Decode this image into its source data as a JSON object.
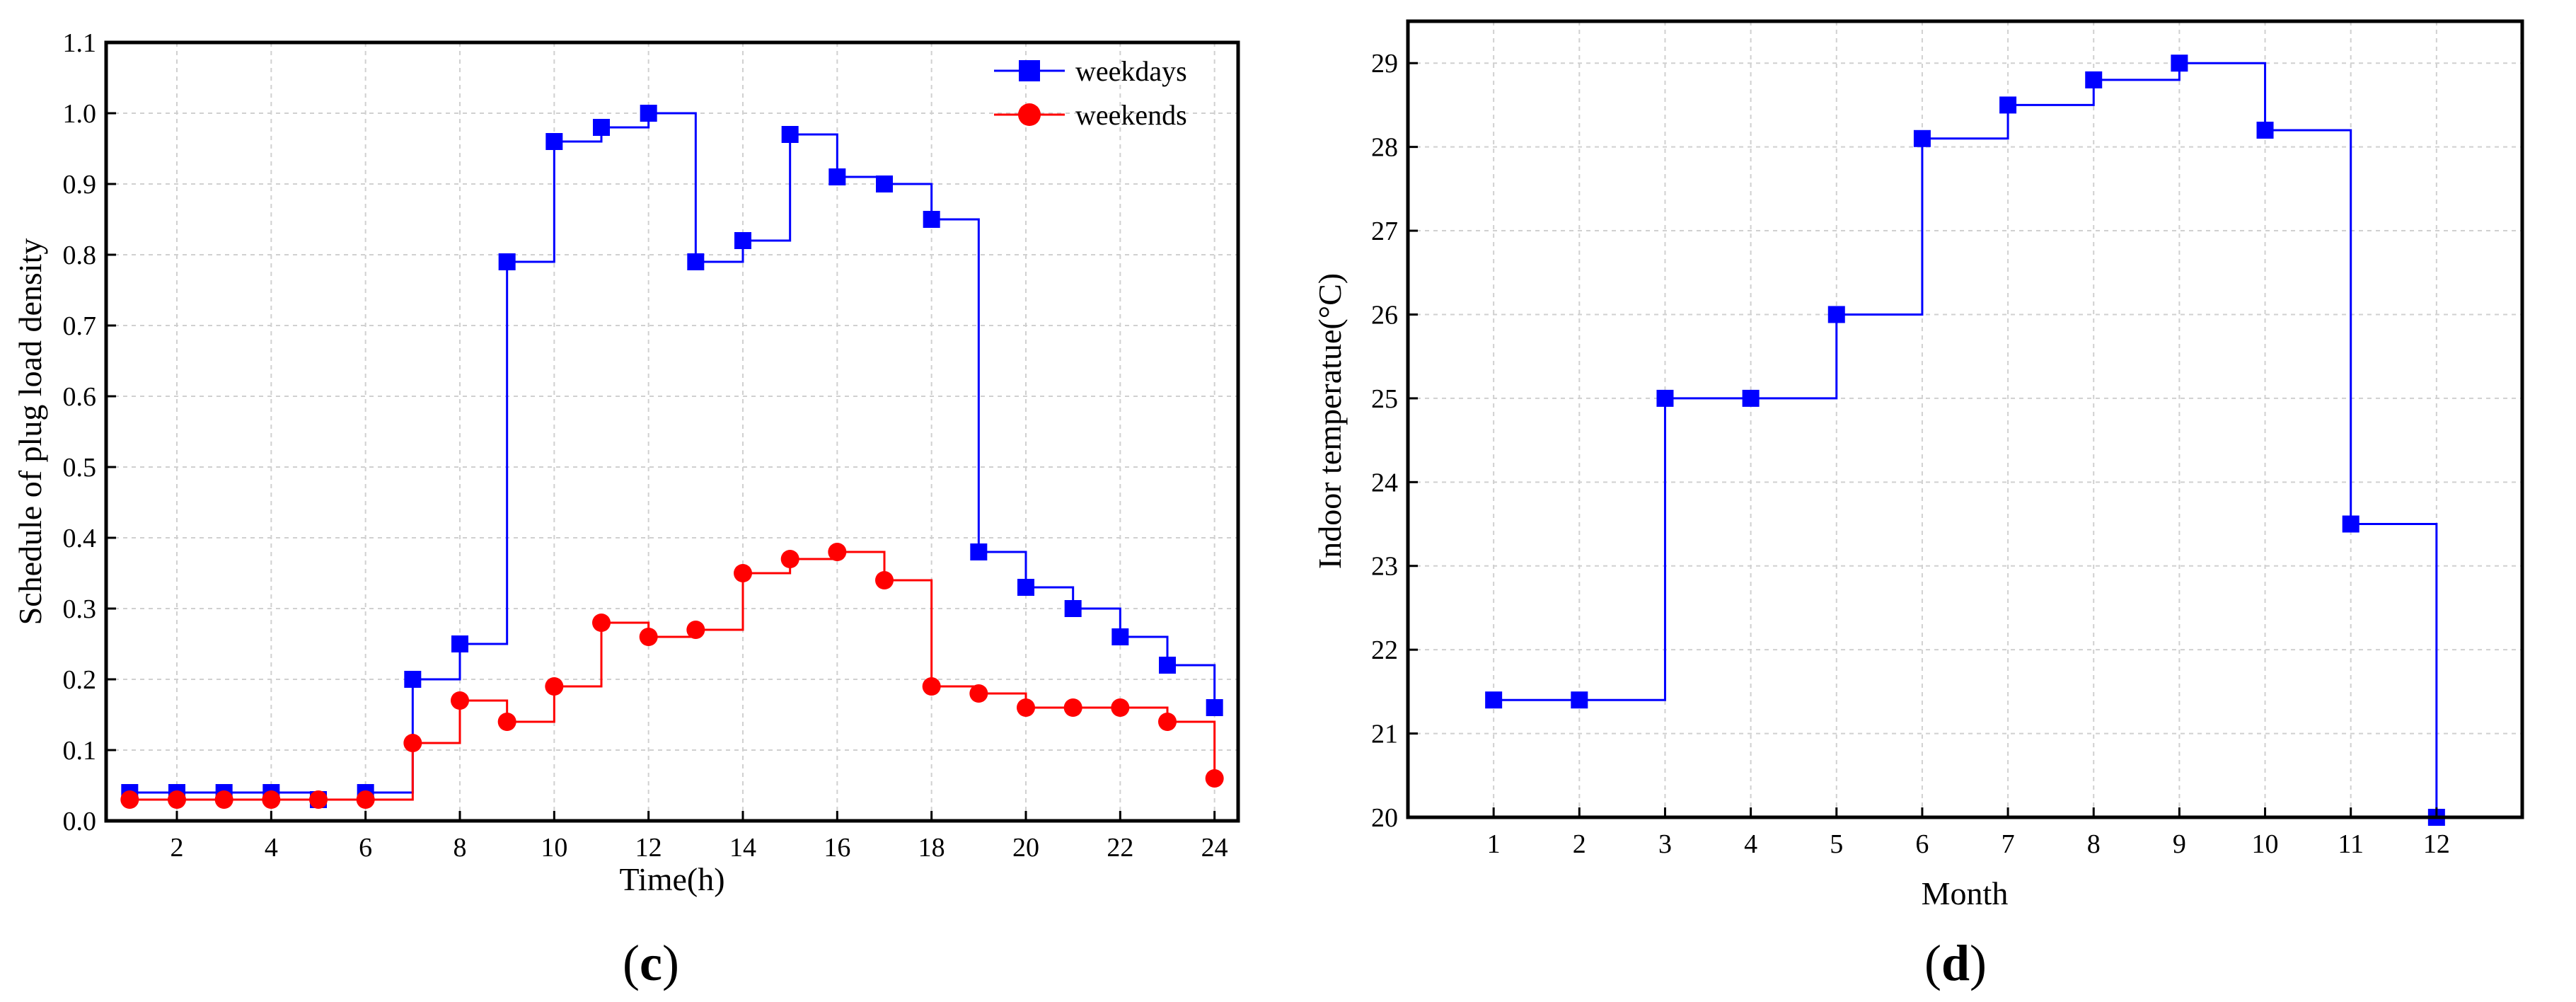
{
  "chart_data": [
    {
      "type": "line",
      "step": "post",
      "panel_label": "(c)",
      "panel_letter": "c",
      "xlabel": "Time(h)",
      "ylabel": "Schedule of plug load density",
      "xlim": [
        0.5,
        24.5
      ],
      "ylim": [
        0.0,
        1.1
      ],
      "xticks": [
        2,
        4,
        6,
        8,
        10,
        12,
        14,
        16,
        18,
        20,
        22,
        24
      ],
      "yticks": [
        0.0,
        0.1,
        0.2,
        0.3,
        0.4,
        0.5,
        0.6,
        0.7,
        0.8,
        0.9,
        1.0,
        1.1
      ],
      "ytick_labels": [
        "0.0",
        "0.1",
        "0.2",
        "0.3",
        "0.4",
        "0.5",
        "0.6",
        "0.7",
        "0.8",
        "0.9",
        "1.0",
        "1.1"
      ],
      "grid": true,
      "legend_position": "top-right",
      "x": [
        1,
        2,
        3,
        4,
        5,
        6,
        7,
        8,
        9,
        10,
        11,
        12,
        13,
        14,
        15,
        16,
        17,
        18,
        19,
        20,
        21,
        22,
        23,
        24
      ],
      "series": [
        {
          "name": "weekdays",
          "color": "#0000ff",
          "marker": "square",
          "values": [
            0.04,
            0.04,
            0.04,
            0.04,
            0.03,
            0.04,
            0.2,
            0.25,
            0.79,
            0.96,
            0.98,
            1.0,
            0.79,
            0.82,
            0.97,
            0.91,
            0.9,
            0.85,
            0.38,
            0.33,
            0.3,
            0.26,
            0.22,
            0.16
          ]
        },
        {
          "name": "weekends",
          "color": "#ff0000",
          "marker": "circle",
          "values": [
            0.03,
            0.03,
            0.03,
            0.03,
            0.03,
            0.03,
            0.11,
            0.17,
            0.14,
            0.19,
            0.28,
            0.26,
            0.27,
            0.35,
            0.37,
            0.38,
            0.34,
            0.19,
            0.18,
            0.16,
            0.16,
            0.16,
            0.14,
            0.06
          ]
        }
      ]
    },
    {
      "type": "line",
      "step": "post",
      "panel_label": "(d)",
      "panel_letter": "d",
      "xlabel": "Month",
      "ylabel": "Indoor temperatue(°C)",
      "xlim": [
        0,
        13
      ],
      "ylim": [
        20,
        29.5
      ],
      "xticks": [
        1,
        2,
        3,
        4,
        5,
        6,
        7,
        8,
        9,
        10,
        11,
        12
      ],
      "yticks": [
        20,
        21,
        22,
        23,
        24,
        25,
        26,
        27,
        28,
        29
      ],
      "ytick_labels": [
        "20",
        "21",
        "22",
        "23",
        "24",
        "25",
        "26",
        "27",
        "28",
        "29"
      ],
      "grid": true,
      "x": [
        1,
        2,
        3,
        4,
        5,
        6,
        7,
        8,
        9,
        10,
        11,
        12
      ],
      "series": [
        {
          "name": "indoor temperature",
          "color": "#0000ff",
          "marker": "square",
          "values": [
            21.4,
            21.4,
            25.0,
            25.0,
            26.0,
            28.1,
            28.5,
            28.8,
            29.0,
            28.2,
            23.5,
            20.0
          ]
        }
      ]
    }
  ]
}
